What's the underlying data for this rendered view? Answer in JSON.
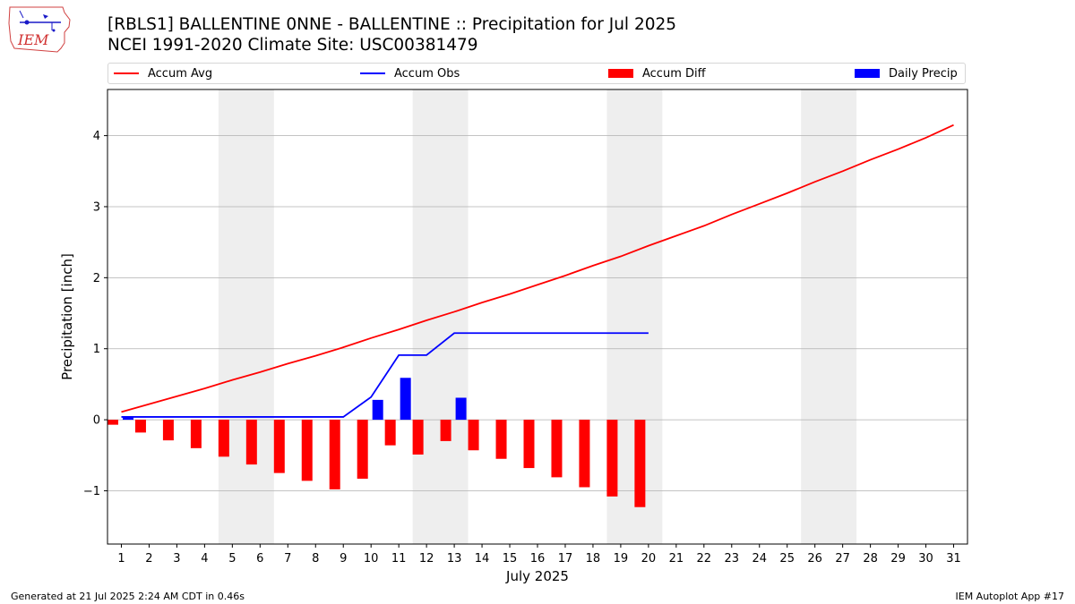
{
  "header": {
    "title_line1": "[RBLS1] BALLENTINE 0NNE - BALLENTINE :: Precipitation for Jul 2025",
    "title_line2": "NCEI 1991-2020 Climate Site: USC00381479",
    "logo_text": "IEM"
  },
  "footer": {
    "generated": "Generated at 21 Jul 2025 2:24 AM CDT in 0.46s",
    "app": "IEM Autoplot App #17"
  },
  "colors": {
    "avg": "#ff0000",
    "obs": "#0000ff",
    "diff": "#ff0000",
    "daily": "#0000ff",
    "weekend": "#eeeeee",
    "grid": "#b0b0b0"
  },
  "chart_data": {
    "type": "bar",
    "xlabel": "July 2025",
    "ylabel": "Precipitation [inch]",
    "xlim": [
      0.5,
      31.5
    ],
    "ylim": [
      -1.75,
      4.65
    ],
    "yticks": [
      -1,
      0,
      1,
      2,
      3,
      4
    ],
    "yticklabels": [
      "−1",
      "0",
      "1",
      "2",
      "3",
      "4"
    ],
    "days": [
      1,
      2,
      3,
      4,
      5,
      6,
      7,
      8,
      9,
      10,
      11,
      12,
      13,
      14,
      15,
      16,
      17,
      18,
      19,
      20,
      21,
      22,
      23,
      24,
      25,
      26,
      27,
      28,
      29,
      30,
      31
    ],
    "weekend_spans": [
      [
        4.5,
        6.5
      ],
      [
        11.5,
        13.5
      ],
      [
        18.5,
        20.5
      ],
      [
        25.5,
        27.5
      ]
    ],
    "legend": {
      "placement": "top",
      "entries": [
        {
          "label": "Accum Avg",
          "kind": "line",
          "color": "#ff0000"
        },
        {
          "label": "Accum Obs",
          "kind": "line",
          "color": "#0000ff"
        },
        {
          "label": "Accum Diff",
          "kind": "bar",
          "color": "#ff0000"
        },
        {
          "label": "Daily Precip",
          "kind": "bar",
          "color": "#0000ff"
        }
      ]
    },
    "series": [
      {
        "name": "Accum Avg",
        "type": "line",
        "x": [
          1,
          2,
          3,
          4,
          5,
          6,
          7,
          8,
          9,
          10,
          11,
          12,
          13,
          14,
          15,
          16,
          17,
          18,
          19,
          20,
          21,
          22,
          23,
          24,
          25,
          26,
          27,
          28,
          29,
          30,
          31
        ],
        "values": [
          0.11,
          0.22,
          0.33,
          0.44,
          0.56,
          0.67,
          0.79,
          0.9,
          1.02,
          1.15,
          1.27,
          1.4,
          1.52,
          1.65,
          1.77,
          1.9,
          2.03,
          2.17,
          2.3,
          2.45,
          2.59,
          2.73,
          2.89,
          3.04,
          3.19,
          3.35,
          3.5,
          3.66,
          3.81,
          3.97,
          4.15
        ]
      },
      {
        "name": "Accum Obs",
        "type": "line",
        "x": [
          1,
          2,
          3,
          4,
          5,
          6,
          7,
          8,
          9,
          10,
          11,
          12,
          13,
          14,
          15,
          16,
          17,
          18,
          19,
          20
        ],
        "values": [
          0.04,
          0.04,
          0.04,
          0.04,
          0.04,
          0.04,
          0.04,
          0.04,
          0.04,
          0.32,
          0.91,
          0.91,
          1.22,
          1.22,
          1.22,
          1.22,
          1.22,
          1.22,
          1.22,
          1.22
        ]
      },
      {
        "name": "Accum Diff",
        "type": "bar",
        "x": [
          1,
          2,
          3,
          4,
          5,
          6,
          7,
          8,
          9,
          10,
          11,
          12,
          13,
          14,
          15,
          16,
          17,
          18,
          19,
          20
        ],
        "values": [
          -0.07,
          -0.18,
          -0.29,
          -0.4,
          -0.52,
          -0.63,
          -0.75,
          -0.86,
          -0.98,
          -0.83,
          -0.36,
          -0.49,
          -0.3,
          -0.43,
          -0.55,
          -0.68,
          -0.81,
          -0.95,
          -1.08,
          -1.23
        ]
      },
      {
        "name": "Daily Precip",
        "type": "bar",
        "x": [
          1,
          2,
          3,
          4,
          5,
          6,
          7,
          8,
          9,
          10,
          11,
          12,
          13,
          14,
          15,
          16,
          17,
          18,
          19,
          20
        ],
        "values": [
          0.04,
          0,
          0,
          0,
          0,
          0,
          0,
          0,
          0,
          0.28,
          0.59,
          0,
          0.31,
          0,
          0,
          0,
          0,
          0,
          0,
          0
        ]
      }
    ]
  }
}
